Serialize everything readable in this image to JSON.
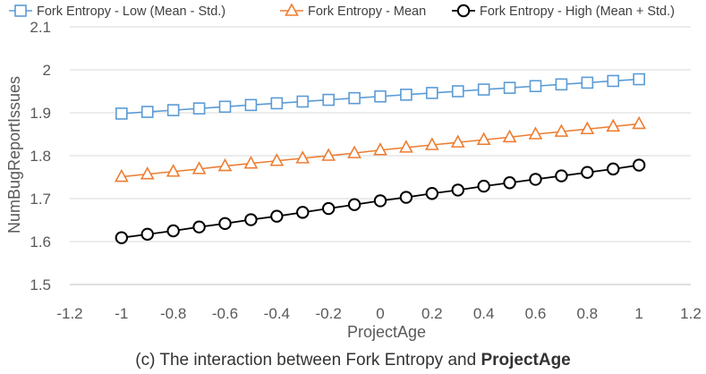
{
  "chart_data": {
    "type": "line",
    "title": "",
    "xlabel": "ProjectAge",
    "ylabel": "NumBugReportIssues",
    "xlim": [
      -1.2,
      1.2
    ],
    "ylim": [
      1.5,
      2.1
    ],
    "xticks": [
      "-1.2",
      "-1",
      "-0.8",
      "-0.6",
      "-0.4",
      "-0.2",
      "0",
      "0.2",
      "0.4",
      "0.6",
      "0.8",
      "1",
      "1.2"
    ],
    "yticks": [
      "1.5",
      "1.6",
      "1.7",
      "1.8",
      "1.9",
      "2",
      "2.1"
    ],
    "grid": "horizontal",
    "legend_position": "top",
    "x": [
      -1,
      -0.9,
      -0.8,
      -0.7,
      -0.6,
      -0.5,
      -0.4,
      -0.3,
      -0.2,
      -0.1,
      0,
      0.1,
      0.2,
      0.3,
      0.4,
      0.5,
      0.6,
      0.7,
      0.8,
      0.9,
      1
    ],
    "series": [
      {
        "name": "Fork Entropy - Low (Mean - Std.)",
        "color": "#5B9BD5",
        "marker": "square",
        "values": [
          1.898,
          1.902,
          1.906,
          1.91,
          1.914,
          1.918,
          1.922,
          1.926,
          1.93,
          1.934,
          1.938,
          1.942,
          1.946,
          1.95,
          1.954,
          1.958,
          1.962,
          1.966,
          1.97,
          1.974,
          1.978
        ]
      },
      {
        "name": "Fork Entropy - Mean",
        "color": "#ED7D31",
        "marker": "triangle",
        "values": [
          1.751,
          1.757,
          1.763,
          1.769,
          1.776,
          1.782,
          1.788,
          1.794,
          1.8,
          1.806,
          1.813,
          1.819,
          1.825,
          1.831,
          1.837,
          1.843,
          1.85,
          1.856,
          1.862,
          1.868,
          1.874
        ]
      },
      {
        "name": "Fork Entropy - High (Mean + Std.)",
        "color": "#000000",
        "marker": "circle",
        "values": [
          1.609,
          1.617,
          1.625,
          1.634,
          1.642,
          1.651,
          1.659,
          1.668,
          1.677,
          1.686,
          1.695,
          1.703,
          1.712,
          1.72,
          1.729,
          1.737,
          1.745,
          1.753,
          1.761,
          1.769,
          1.778
        ]
      }
    ]
  },
  "caption": {
    "prefix": "(c) The interaction between Fork Entropy and ",
    "bold": "ProjectAge"
  }
}
